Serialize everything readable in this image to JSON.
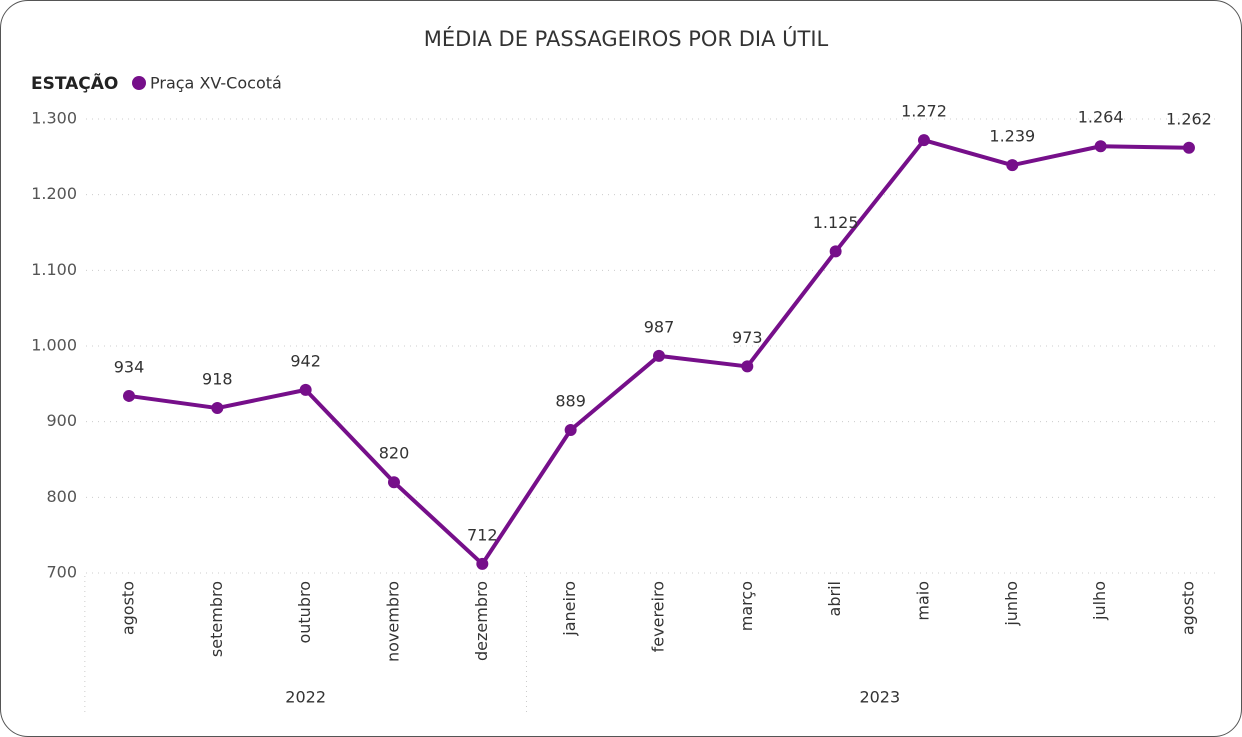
{
  "chart_data": {
    "type": "line",
    "title": "MÉDIA DE PASSAGEIROS POR DIA ÚTIL",
    "legend_title": "ESTAÇÃO",
    "groups": [
      {
        "name": "2022",
        "categories": [
          "agosto",
          "setembro",
          "outubro",
          "novembro",
          "dezembro"
        ]
      },
      {
        "name": "2023",
        "categories": [
          "janeiro",
          "fevereiro",
          "março",
          "abril",
          "maio",
          "junho",
          "julho",
          "agosto"
        ]
      }
    ],
    "series": [
      {
        "name": "Praça XV-Cocotá",
        "color": "#760f8a",
        "values": [
          934,
          918,
          942,
          820,
          712,
          889,
          987,
          973,
          1125,
          1272,
          1239,
          1264,
          1262
        ],
        "value_labels": [
          "934",
          "918",
          "942",
          "820",
          "712",
          "889",
          "987",
          "973",
          "1.125",
          "1.272",
          "1.239",
          "1.264",
          "1.262"
        ]
      }
    ],
    "ylim": [
      700,
      1300
    ],
    "yticks": [
      700,
      800,
      900,
      {
        "value": 1000,
        "label": "1.000"
      },
      {
        "value": 1100,
        "label": "1.100"
      },
      {
        "value": 1200,
        "label": "1.200"
      },
      {
        "value": 1300,
        "label": "1.300"
      }
    ],
    "grid": true
  }
}
